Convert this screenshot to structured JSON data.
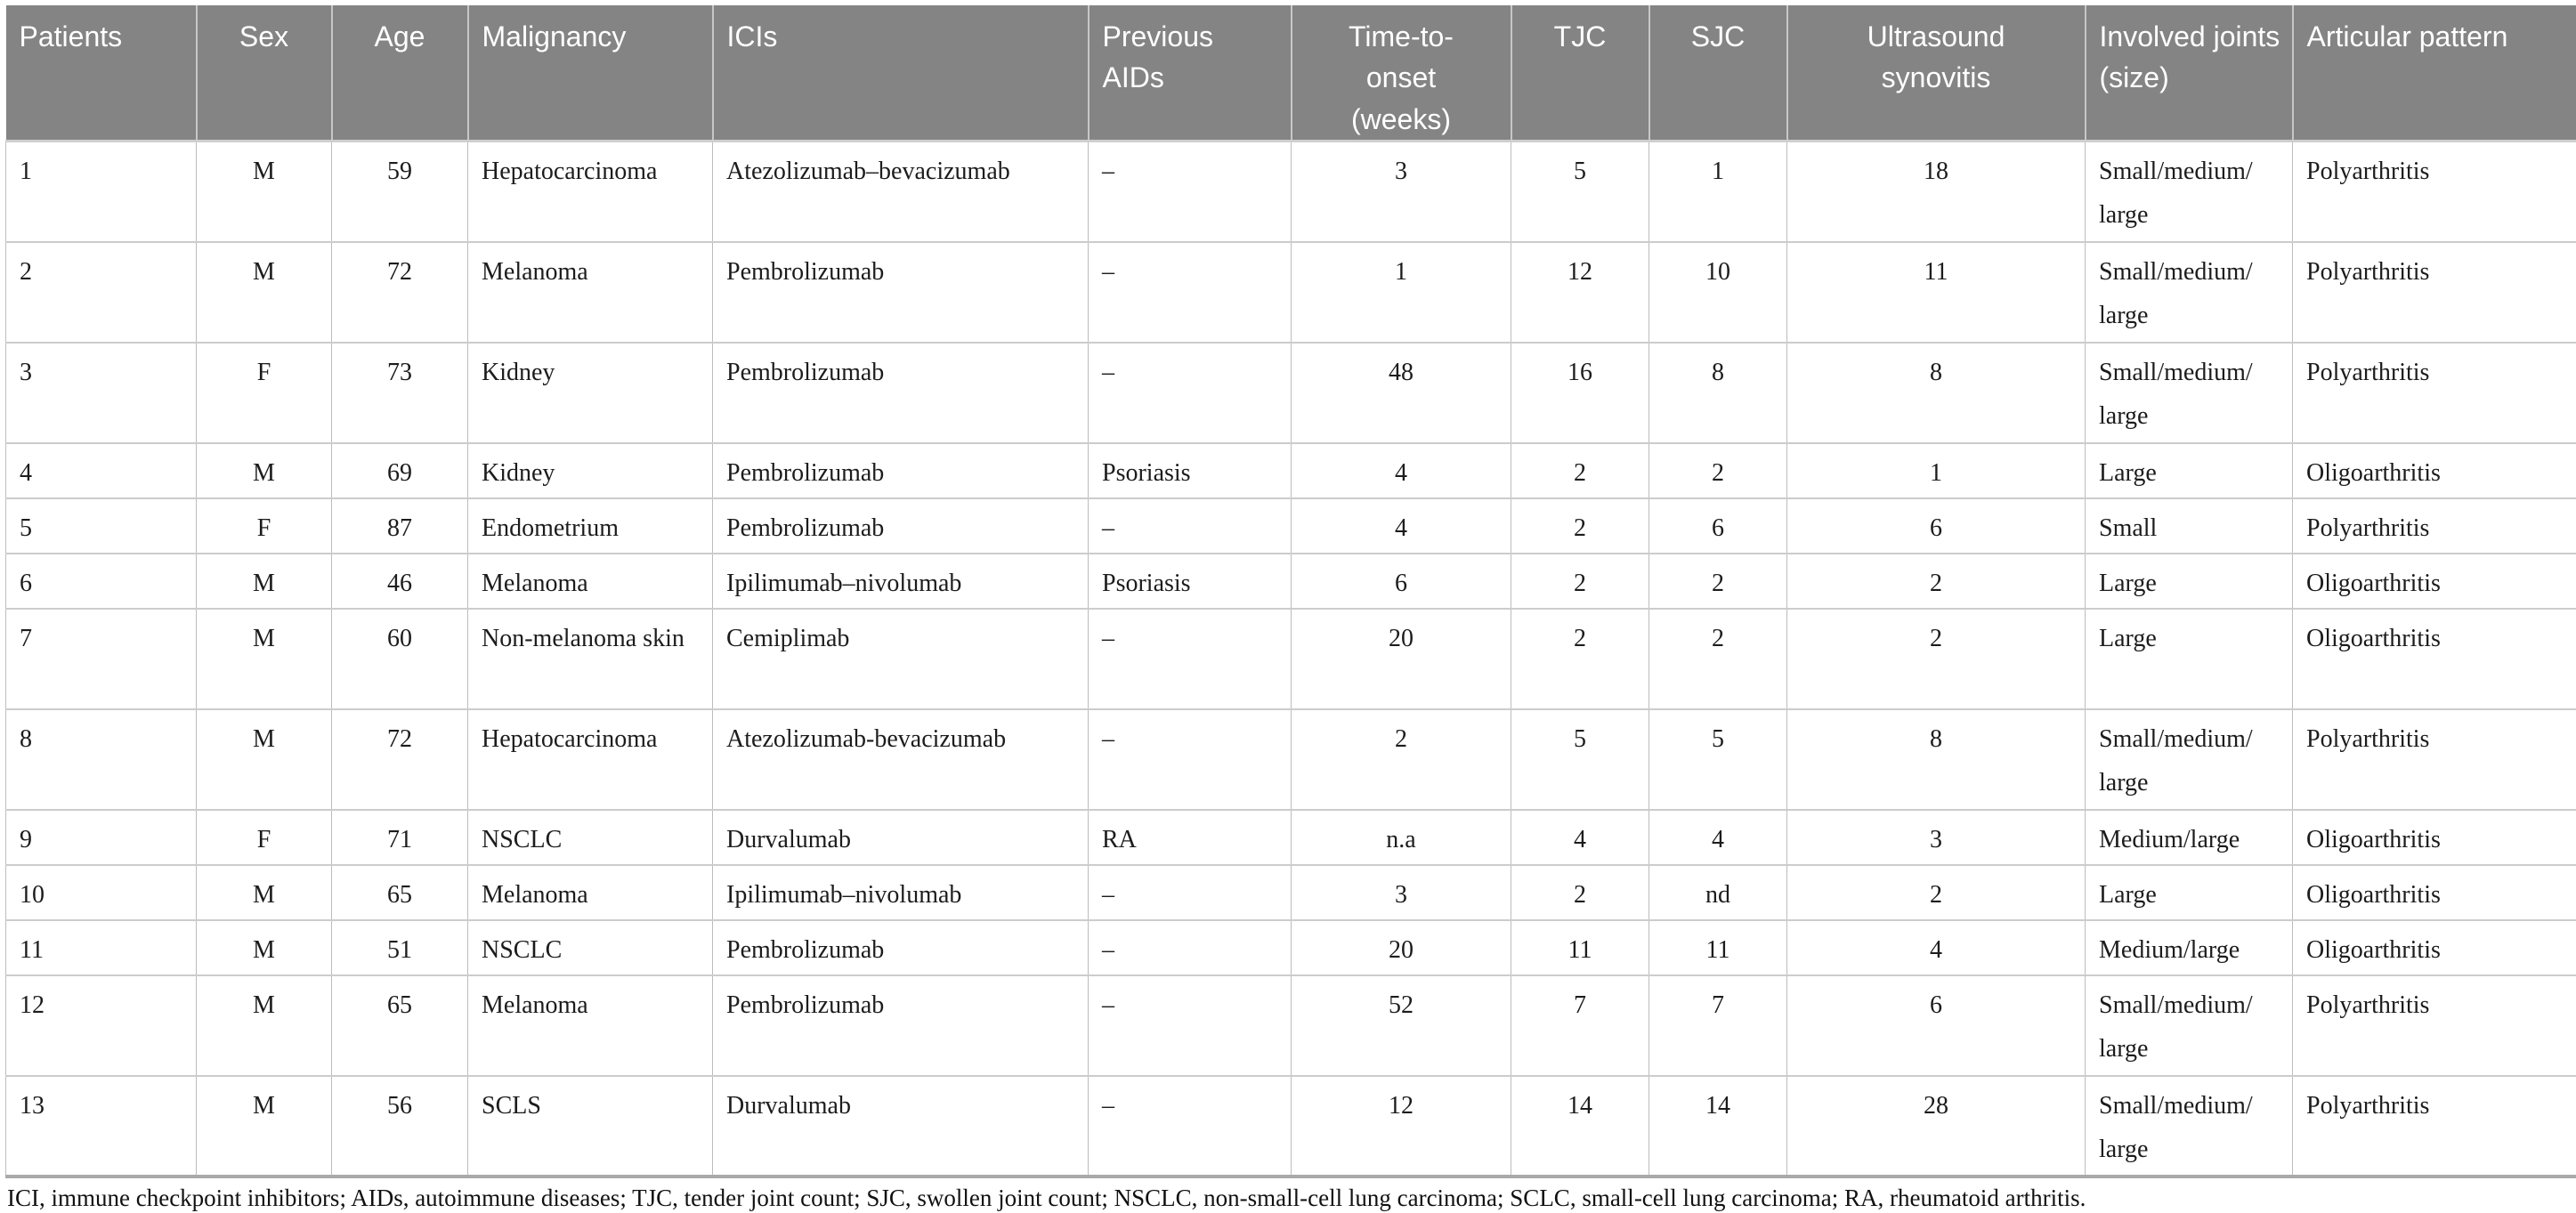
{
  "table": {
    "columns": [
      {
        "id": "patients",
        "label": "Patients"
      },
      {
        "id": "sex",
        "label": "Sex"
      },
      {
        "id": "age",
        "label": "Age"
      },
      {
        "id": "malignancy",
        "label": "Malignancy"
      },
      {
        "id": "icis",
        "label": "ICIs"
      },
      {
        "id": "previous-aids",
        "label": "Previous AIDs"
      },
      {
        "id": "time-to-onset-weeks",
        "label": "Time-to-onset (weeks)"
      },
      {
        "id": "tjc",
        "label": "TJC"
      },
      {
        "id": "sjc",
        "label": "SJC"
      },
      {
        "id": "ultrasound-synovitis",
        "label": "Ultrasound synovitis"
      },
      {
        "id": "involved-joints-size",
        "label": "Involved joints (size)"
      },
      {
        "id": "articular-pattern",
        "label": "Articular pattern"
      }
    ],
    "rows": [
      [
        "1",
        "M",
        "59",
        "Hepatocarcinoma",
        "Atezolizumab–bevacizumab",
        "–",
        "3",
        "5",
        "1",
        "18",
        "Small/medium/large",
        "Polyarthritis"
      ],
      [
        "2",
        "M",
        "72",
        "Melanoma",
        "Pembrolizumab",
        "–",
        "1",
        "12",
        "10",
        "11",
        "Small/medium/large",
        "Polyarthritis"
      ],
      [
        "3",
        "F",
        "73",
        "Kidney",
        "Pembrolizumab",
        "–",
        "48",
        "16",
        "8",
        "8",
        "Small/medium/large",
        "Polyarthritis"
      ],
      [
        "4",
        "M",
        "69",
        "Kidney",
        "Pembrolizumab",
        "Psoriasis",
        "4",
        "2",
        "2",
        "1",
        "Large",
        "Oligoarthritis"
      ],
      [
        "5",
        "F",
        "87",
        "Endometrium",
        "Pembrolizumab",
        "–",
        "4",
        "2",
        "6",
        "6",
        "Small",
        "Polyarthritis"
      ],
      [
        "6",
        "M",
        "46",
        "Melanoma",
        "Ipilimumab–nivolumab",
        "Psoriasis",
        "6",
        "2",
        "2",
        "2",
        "Large",
        "Oligoarthritis"
      ],
      [
        "7",
        "M",
        "60",
        "Non-melanoma skin",
        "Cemiplimab",
        "–",
        "20",
        "2",
        "2",
        "2",
        "Large",
        "Oligoarthritis"
      ],
      [
        "8",
        "M",
        "72",
        "Hepatocarcinoma",
        "Atezolizumab-bevacizumab",
        "–",
        "2",
        "5",
        "5",
        "8",
        "Small/medium/large",
        "Polyarthritis"
      ],
      [
        "9",
        "F",
        "71",
        "NSCLC",
        "Durvalumab",
        "RA",
        "n.a",
        "4",
        "4",
        "3",
        "Medium/large",
        "Oligoarthritis"
      ],
      [
        "10",
        "M",
        "65",
        "Melanoma",
        "Ipilimumab–nivolumab",
        "–",
        "3",
        "2",
        "nd",
        "2",
        "Large",
        "Oligoarthritis"
      ],
      [
        "11",
        "M",
        "51",
        "NSCLC",
        "Pembrolizumab",
        "–",
        "20",
        "11",
        "11",
        "4",
        "Medium/large",
        "Oligoarthritis"
      ],
      [
        "12",
        "M",
        "65",
        "Melanoma",
        "Pembrolizumab",
        "–",
        "52",
        "7",
        "7",
        "6",
        "Small/medium/large",
        "Polyarthritis"
      ],
      [
        "13",
        "M",
        "56",
        "SCLS",
        "Durvalumab",
        "–",
        "12",
        "14",
        "14",
        "28",
        "Small/medium/large",
        "Polyarthritis"
      ]
    ],
    "footnote": "ICI, immune checkpoint inhibitors; AIDs, autoimmune diseases; TJC, tender joint count; SJC, swollen joint count; NSCLC, non-small-cell lung carcinoma; SCLC, small-cell lung carcinoma; RA, rheumatoid arthritis.",
    "colors": {
      "header_background": "#848484",
      "header_text": "#ffffff",
      "body_text": "#1c1c1c",
      "grid_line": "#bcbcbc"
    }
  }
}
